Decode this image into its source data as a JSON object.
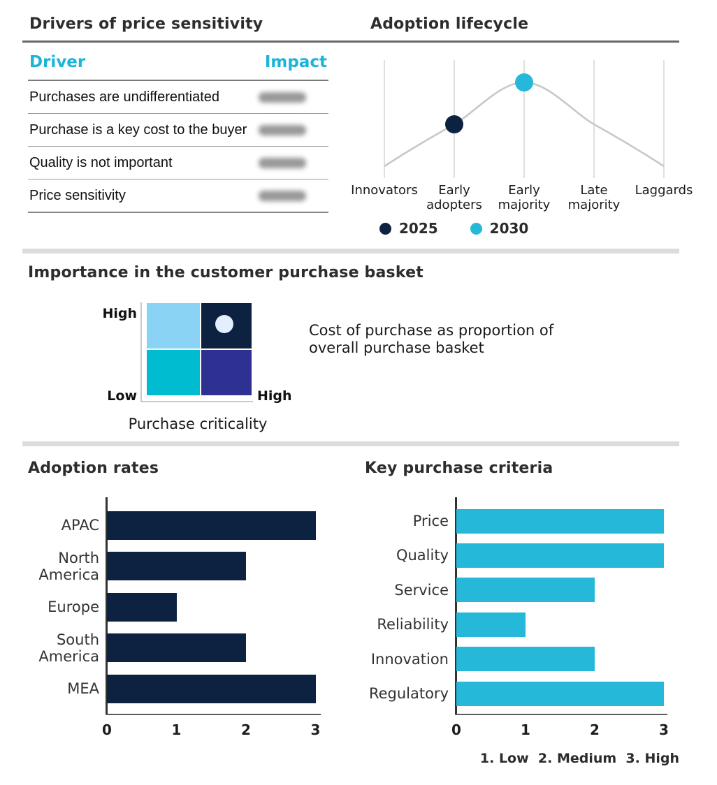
{
  "colors": {
    "navy": "#0D2240",
    "cyan": "#25B8D9",
    "cyan_header_text": "#1CB4D8",
    "curve_gray": "#C8C8C8",
    "gridline_gray": "#D9D9D9",
    "divider_gray": "#DCDCDC"
  },
  "sections": {
    "drivers": {
      "title": "Drivers of price sensitivity",
      "columns": {
        "driver": "Driver",
        "impact": "Impact"
      },
      "rows": [
        {
          "driver": "Purchases are undifferentiated",
          "impact": ""
        },
        {
          "driver": "Purchase is a key cost to the buyer",
          "impact": ""
        },
        {
          "driver": "Quality is not important",
          "impact": ""
        },
        {
          "driver": "Price sensitivity",
          "impact": ""
        }
      ]
    },
    "lifecycle": {
      "title": "Adoption lifecycle",
      "legend": [
        {
          "label": "2025",
          "color": "#0D2240"
        },
        {
          "label": "2030",
          "color": "#25B8D9"
        }
      ]
    },
    "importance": {
      "title": "Importance in the customer purchase basket",
      "y_axis_top": "High",
      "y_axis_bottom": "Low",
      "x_axis_right": "High",
      "x_axis_label": "Purchase criticality",
      "annotation": "Cost of purchase as proportion of overall purchase basket"
    },
    "adoption_rates": {
      "title": "Adoption rates"
    },
    "purchase_criteria": {
      "title": "Key purchase criteria",
      "footnote": "1. Low  2. Medium  3. High"
    }
  },
  "chart_data": [
    {
      "id": "adoption-lifecycle",
      "type": "line",
      "title": "Adoption lifecycle",
      "categories": [
        "Innovators",
        "Early adopters",
        "Early majority",
        "Late majority",
        "Laggards"
      ],
      "curve_values": [
        0.1,
        0.5,
        1.0,
        0.5,
        0.1
      ],
      "markers": [
        {
          "name": "2025",
          "category": "Early adopters",
          "value": 0.5,
          "color": "#0D2240"
        },
        {
          "name": "2030",
          "category": "Early majority",
          "value": 1.0,
          "color": "#25B8D9"
        }
      ],
      "grid": "vertical-only",
      "legend_position": "bottom"
    },
    {
      "id": "adoption-rates",
      "type": "bar",
      "orientation": "horizontal",
      "title": "Adoption rates",
      "categories": [
        "APAC",
        "North America",
        "Europe",
        "South America",
        "MEA"
      ],
      "values": [
        3,
        2,
        1,
        2,
        3
      ],
      "xlim": [
        0,
        3
      ],
      "ticks": [
        0,
        1,
        2,
        3
      ],
      "bar_color": "#0D2240"
    },
    {
      "id": "key-purchase-criteria",
      "type": "bar",
      "orientation": "horizontal",
      "title": "Key purchase criteria",
      "categories": [
        "Price",
        "Quality",
        "Service",
        "Reliability",
        "Innovation",
        "Regulatory"
      ],
      "values": [
        3,
        3,
        2,
        1,
        2,
        3
      ],
      "xlim": [
        0,
        3
      ],
      "ticks": [
        0,
        1,
        2,
        3
      ],
      "bar_color": "#25B8D9",
      "scale_note": "1. Low  2. Medium  3. High"
    },
    {
      "id": "importance-matrix",
      "type": "heatmap",
      "title": "Importance in the customer purchase basket",
      "x_axis": {
        "label": "Purchase criticality",
        "high": "High"
      },
      "y_axis": {
        "top": "High",
        "bottom": "Low"
      },
      "cells": [
        [
          "#8BD3F5",
          "#0D2240"
        ],
        [
          "#00BCD1",
          "#2E3192"
        ]
      ],
      "marker": {
        "row": 0,
        "col": 1,
        "color": "#E3EFFC"
      },
      "annotation": "Cost of purchase as proportion of overall purchase basket"
    }
  ]
}
